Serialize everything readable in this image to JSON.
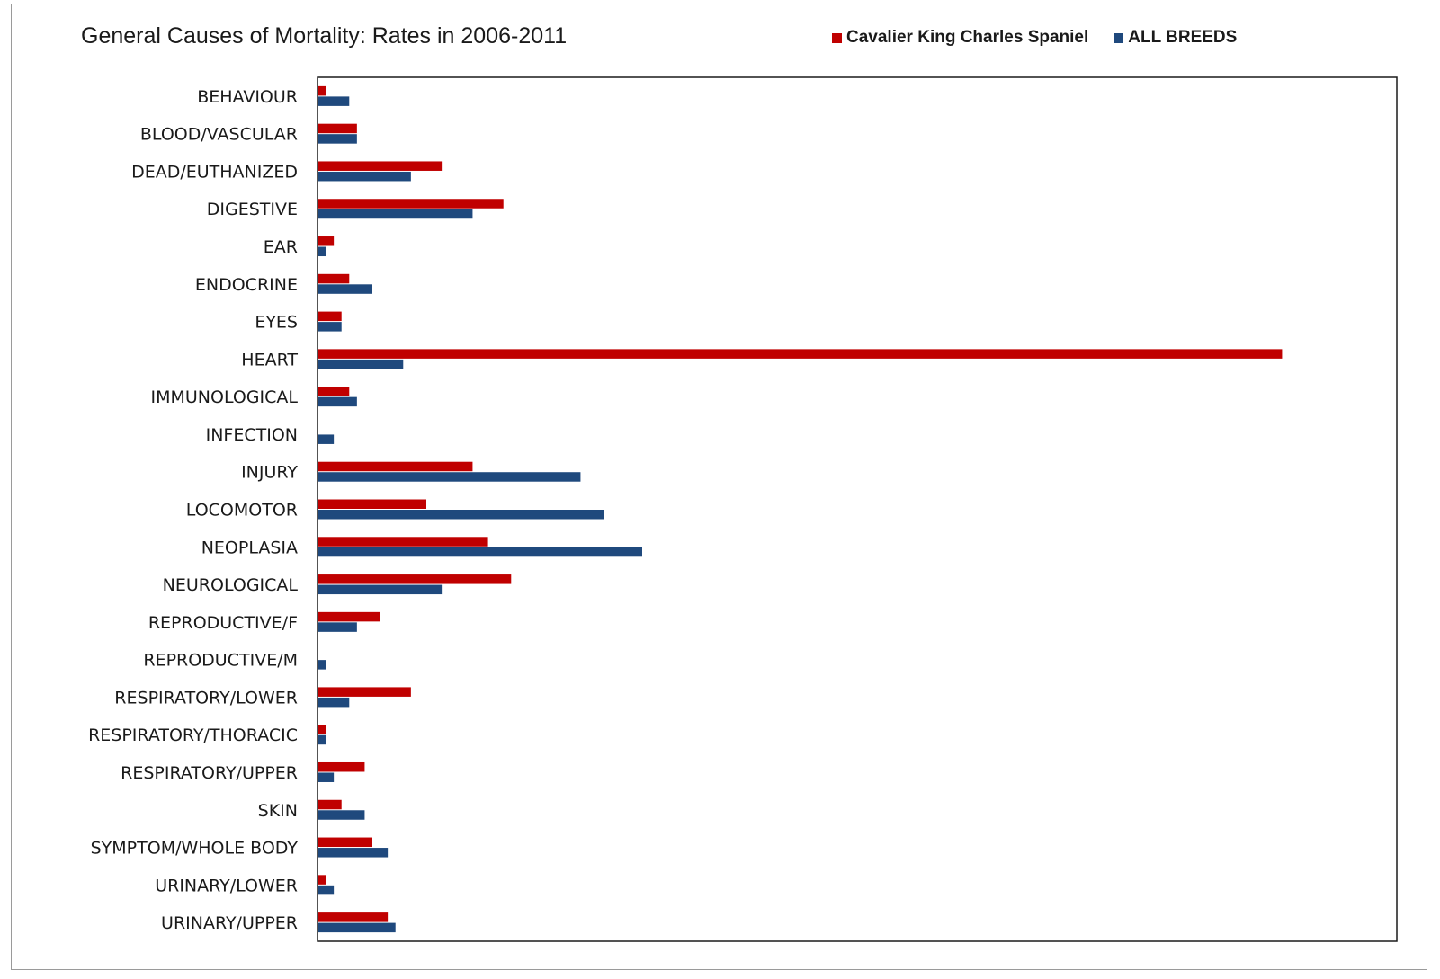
{
  "chart_data": {
    "type": "bar",
    "orientation": "horizontal",
    "title": "General Causes of Mortality: Rates in 2006-2011",
    "xlabel": "",
    "ylabel": "",
    "grid": false,
    "legend_position": "top-right",
    "xlim": [
      0,
      1.4
    ],
    "categories": [
      "BEHAVIOUR",
      "BLOOD/VASCULAR",
      "DEAD/EUTHANIZED",
      "DIGESTIVE",
      "EAR",
      "ENDOCRINE",
      "EYES",
      "HEART",
      "IMMUNOLOGICAL",
      "INFECTION",
      "INJURY",
      "LOCOMOTOR",
      "NEOPLASIA",
      "NEUROLOGICAL",
      "REPRODUCTIVE/F",
      "REPRODUCTIVE/M",
      "RESPIRATORY/LOWER",
      "RESPIRATORY/THORACIC",
      "RESPIRATORY/UPPER",
      "SKIN",
      "SYMPTOM/WHOLE BODY",
      "URINARY/LOWER",
      "URINARY/UPPER"
    ],
    "series": [
      {
        "name": "Cavalier King Charles Spaniel",
        "color": "#c00000",
        "values": [
          0.01,
          0.05,
          0.16,
          0.24,
          0.02,
          0.04,
          0.03,
          1.25,
          0.04,
          0,
          0.2,
          0.14,
          0.22,
          0.25,
          0.08,
          0,
          0.12,
          0.01,
          0.06,
          0.03,
          0.07,
          0.01,
          0.09
        ]
      },
      {
        "name": "ALL BREEDS",
        "color": "#1f497d",
        "values": [
          0.04,
          0.05,
          0.12,
          0.2,
          0.01,
          0.07,
          0.03,
          0.11,
          0.05,
          0.02,
          0.34,
          0.37,
          0.42,
          0.16,
          0.05,
          0.01,
          0.04,
          0.01,
          0.02,
          0.06,
          0.09,
          0.02,
          0.1
        ]
      }
    ]
  }
}
